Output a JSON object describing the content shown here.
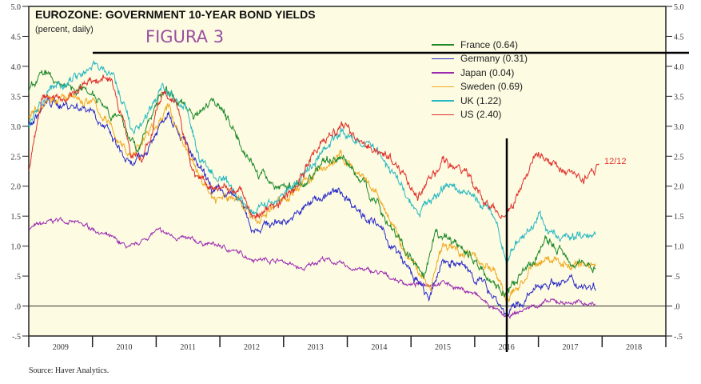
{
  "chart_data": {
    "type": "line",
    "title": "EUROZONE: GOVERNMENT 10-YEAR BOND YIELDS",
    "subtitle": "(percent, daily)",
    "annotation": "FIGURA 3",
    "end_label": "12/12",
    "source": "Source: Haver Analytics.",
    "xlabel": "",
    "ylabel": "",
    "xlim": [
      2009,
      2019
    ],
    "ylim": [
      -0.5,
      5.0
    ],
    "x_tick_labels": [
      "2009",
      "2010",
      "2011",
      "2012",
      "2013",
      "2014",
      "2015",
      "2016",
      "2017",
      "2018"
    ],
    "y_tick_labels": [
      "5.0",
      "4.5",
      "4.0",
      "3.5",
      "3.0",
      "2.5",
      "2.0",
      "1.5",
      "1.0",
      ".5",
      ".0",
      "-.5"
    ],
    "y_ticks": [
      5.0,
      4.5,
      4.0,
      3.5,
      3.0,
      2.5,
      2.0,
      1.5,
      1.0,
      0.5,
      0.0,
      -0.5
    ],
    "legend_position": "top-right",
    "background": "#fdfbe2",
    "series": [
      {
        "name": "France (0.64)",
        "color": "#1e8a2a",
        "x": [
          2009,
          2009.2,
          2009.5,
          2010,
          2010.5,
          2010.7,
          2011.1,
          2011.4,
          2011.6,
          2011.9,
          2012.2,
          2012.6,
          2012.9,
          2013.3,
          2013.6,
          2013.9,
          2014.3,
          2014.7,
          2015.0,
          2015.2,
          2015.4,
          2015.8,
          2016.2,
          2016.5,
          2016.9,
          2017.1,
          2017.5,
          2017.9
        ],
        "y": [
          3.6,
          3.9,
          3.7,
          3.6,
          3.0,
          2.6,
          3.6,
          3.4,
          3.2,
          3.5,
          3.0,
          2.2,
          2.0,
          2.0,
          2.4,
          2.5,
          2.0,
          1.3,
          0.8,
          0.4,
          1.2,
          1.0,
          0.5,
          0.2,
          0.7,
          1.1,
          0.8,
          0.64
        ]
      },
      {
        "name": "Germany (0.31)",
        "color": "#2a2ac8",
        "x": [
          2009,
          2009.3,
          2010,
          2010.6,
          2010.8,
          2011.2,
          2011.6,
          2011.9,
          2012.3,
          2012.5,
          2012.9,
          2013.2,
          2013.5,
          2013.9,
          2014.5,
          2014.9,
          2015.3,
          2015.5,
          2015.9,
          2016.3,
          2016.5,
          2016.9,
          2017.1,
          2017.5,
          2017.9
        ],
        "y": [
          3.0,
          3.4,
          3.3,
          2.3,
          2.5,
          3.3,
          2.4,
          1.9,
          1.8,
          1.3,
          1.4,
          1.5,
          1.8,
          1.9,
          1.3,
          0.7,
          0.1,
          0.8,
          0.6,
          0.2,
          -0.15,
          0.2,
          0.4,
          0.4,
          0.31
        ]
      },
      {
        "name": "Japan (0.04)",
        "color": "#9a2ab0",
        "x": [
          2009,
          2009.5,
          2010,
          2010.6,
          2011.0,
          2011.5,
          2012.0,
          2012.5,
          2013.0,
          2013.3,
          2013.6,
          2014.0,
          2014.5,
          2015.0,
          2015.5,
          2016.0,
          2016.3,
          2016.5,
          2016.9,
          2017.2,
          2017.9
        ],
        "y": [
          1.3,
          1.45,
          1.3,
          0.95,
          1.25,
          1.1,
          1.0,
          0.8,
          0.75,
          0.6,
          0.8,
          0.65,
          0.55,
          0.35,
          0.4,
          0.2,
          -0.05,
          -0.2,
          0.0,
          0.07,
          0.04
        ]
      },
      {
        "name": "Sweden (0.69)",
        "color": "#f0a820",
        "x": [
          2009,
          2009.3,
          2010,
          2010.6,
          2011.2,
          2011.6,
          2011.9,
          2012.3,
          2012.6,
          2013.0,
          2013.5,
          2013.9,
          2014.5,
          2014.9,
          2015.3,
          2015.5,
          2015.9,
          2016.3,
          2016.5,
          2016.9,
          2017.1,
          2017.5,
          2017.9
        ],
        "y": [
          3.2,
          3.5,
          3.4,
          2.5,
          3.3,
          2.3,
          1.8,
          1.8,
          1.4,
          1.8,
          2.2,
          2.5,
          1.8,
          0.9,
          0.3,
          1.0,
          0.9,
          0.6,
          0.1,
          0.6,
          0.8,
          0.7,
          0.69
        ]
      },
      {
        "name": "UK (1.22)",
        "color": "#28b8c0",
        "x": [
          2009,
          2009.3,
          2010,
          2010.3,
          2010.6,
          2010.8,
          2011.1,
          2011.5,
          2011.7,
          2012.0,
          2012.5,
          2012.9,
          2013.2,
          2013.6,
          2013.9,
          2014.5,
          2014.9,
          2015.1,
          2015.5,
          2015.9,
          2016.3,
          2016.5,
          2016.8,
          2017.0,
          2017.3,
          2017.7,
          2017.9
        ],
        "y": [
          3.0,
          3.6,
          4.0,
          3.9,
          3.0,
          3.0,
          3.7,
          3.2,
          2.4,
          2.1,
          1.6,
          1.8,
          2.0,
          2.6,
          2.9,
          2.6,
          1.9,
          1.5,
          2.0,
          1.9,
          1.5,
          0.8,
          1.2,
          1.5,
          1.1,
          1.2,
          1.25
        ]
      },
      {
        "name": "US (2.40)",
        "color": "#e0302a",
        "x": [
          2009,
          2009.2,
          2009.5,
          2010,
          2010.3,
          2010.6,
          2010.8,
          2011.1,
          2011.3,
          2011.6,
          2011.9,
          2012.3,
          2012.5,
          2012.9,
          2013.2,
          2013.5,
          2013.9,
          2014.5,
          2014.9,
          2015.1,
          2015.5,
          2015.9,
          2016.1,
          2016.5,
          2016.9,
          2017.0,
          2017.2,
          2017.5,
          2017.7,
          2017.95
        ],
        "y": [
          2.3,
          3.5,
          3.4,
          3.8,
          3.8,
          2.6,
          2.5,
          3.5,
          3.4,
          2.2,
          2.0,
          2.0,
          1.5,
          1.7,
          2.0,
          2.6,
          3.0,
          2.6,
          2.2,
          1.8,
          2.4,
          2.2,
          1.8,
          1.45,
          2.4,
          2.5,
          2.4,
          2.2,
          2.1,
          2.4
        ]
      }
    ]
  }
}
